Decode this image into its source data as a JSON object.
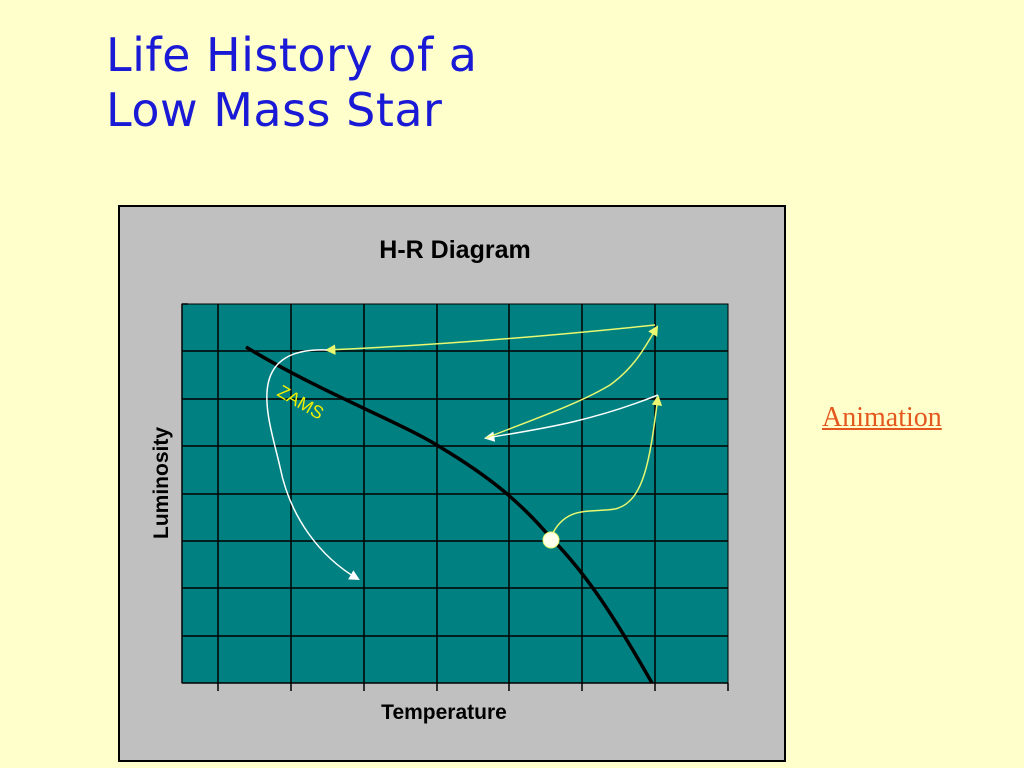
{
  "slide": {
    "title_line1": "Life History of a",
    "title_line2": "Low Mass Star"
  },
  "diagram": {
    "title": "H-R Diagram",
    "x_label": "Temperature",
    "y_label": "Luminosity",
    "zams_label": "ZAMS"
  },
  "link": {
    "label": "Animation"
  },
  "colors": {
    "background": "#ffffcc",
    "title": "#1a1ad6",
    "panel": "#c0c0c0",
    "plot_area": "#008080",
    "main_sequence": "#000000",
    "track_yellow": "#e8f870",
    "track_white": "#ffffff",
    "zams_text": "#f0f000",
    "link": "#e4571f"
  }
}
